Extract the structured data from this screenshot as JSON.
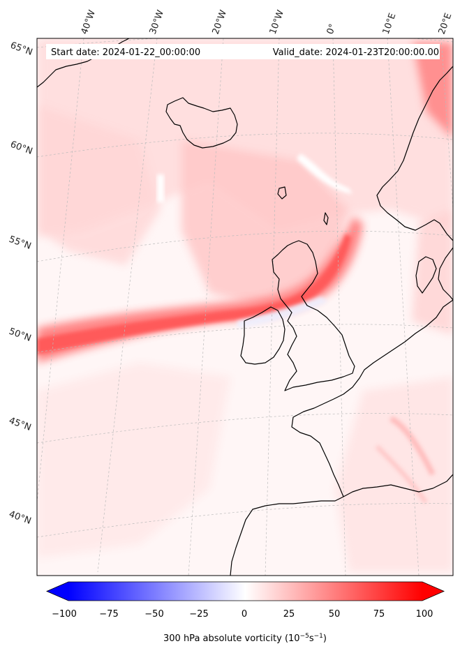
{
  "header": {
    "start_date": "Start date: 2024-01-22_00:00:00",
    "valid_date": "Valid_date: 2024-01-23T20:00:00.00"
  },
  "longitude_labels": [
    "40°W",
    "30°W",
    "20°W",
    "10°W",
    "0°",
    "10°E",
    "20°E"
  ],
  "latitude_labels": [
    "65°N",
    "60°N",
    "55°N",
    "50°N",
    "45°N",
    "40°N"
  ],
  "colorbar": {
    "ticks": [
      "−100",
      "−75",
      "−50",
      "−25",
      "0",
      "25",
      "50",
      "75",
      "100"
    ],
    "label_main": "300 hPa absolute vorticity (10",
    "label_exp1": "−5",
    "label_mid": "s",
    "label_exp2": "−1",
    "label_end": ")",
    "min": -100,
    "max": 100,
    "extend": "both",
    "colormap": "bwr"
  },
  "colors": {
    "negative": "#0000ff",
    "zero": "#ffffff",
    "positive": "#ff0000",
    "coastline": "#000000",
    "gridline": "#bbbbbb"
  }
}
